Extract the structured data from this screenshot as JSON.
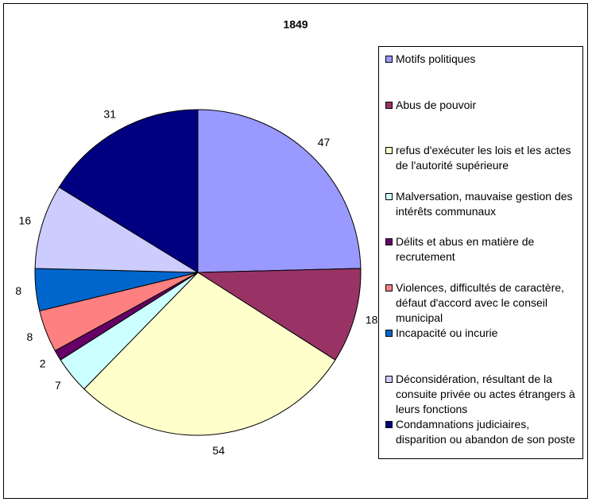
{
  "chart_data": {
    "type": "pie",
    "title": "1849",
    "categories": [
      "Motifs politiques",
      "Abus de pouvoir",
      "refus d'exécuter les lois et les actes de l'autorité supérieure",
      "Malversation, mauvaise gestion des intérêts communaux",
      "Délits et abus en matière de recrutement",
      "Violences, difficultés de caractère, défaut d'accord avec le conseil municipal",
      "Incapacité ou incurie",
      "Déconsidération, résultant de la consuite privée ou actes étrangers à leurs fonctions",
      "Condamnations judiciaires, disparition ou abandon de son poste"
    ],
    "values": [
      47,
      18,
      54,
      7,
      2,
      8,
      8,
      16,
      31
    ],
    "colors": [
      "#9999ff",
      "#993366",
      "#ffffcc",
      "#ccffff",
      "#660066",
      "#ff8080",
      "#0066cc",
      "#ccccff",
      "#000080"
    ],
    "legend": "right"
  }
}
